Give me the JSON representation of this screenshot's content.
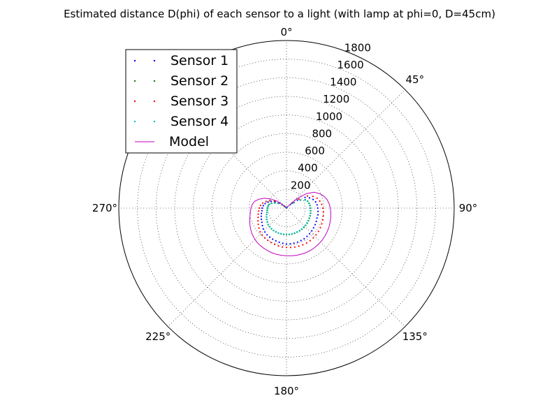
{
  "chart_data": {
    "type": "polar-scatter",
    "title": "Estimated distance D(phi) of each sensor to a light (with lamp at phi=0, D=45cm)",
    "theta_direction": "clockwise",
    "theta_zero": "top",
    "r_max": 1800,
    "r_ticks": [
      200,
      400,
      600,
      800,
      1000,
      1200,
      1400,
      1600,
      1800
    ],
    "r_tick_labels": [
      "200",
      "400",
      "600",
      "800",
      "1000",
      "1200",
      "1400",
      "1600",
      "1800"
    ],
    "theta_ticks": [
      0,
      45,
      90,
      135,
      180,
      225,
      270,
      315
    ],
    "theta_tick_labels": [
      "0°",
      "45°",
      "90°",
      "135°",
      "180°",
      "225°",
      "270°",
      ""
    ],
    "grid": true,
    "legend_position": "top-left",
    "series": [
      {
        "name": "Sensor 1",
        "style": "dots",
        "color": "#0000ff",
        "theta": [
          0,
          6,
          12,
          18,
          24,
          30,
          36,
          42,
          48,
          54,
          60,
          66,
          72,
          78,
          84,
          90,
          96,
          102,
          108,
          114,
          120,
          126,
          132,
          138,
          144,
          150,
          156,
          162,
          168,
          174,
          180,
          186,
          192,
          198,
          204,
          210,
          216,
          222,
          228,
          234,
          240,
          246,
          252,
          258,
          264,
          270,
          276,
          282,
          288,
          294,
          300,
          306,
          312,
          318,
          324,
          330,
          336,
          342,
          348,
          354
        ],
        "r": [
          10,
          10,
          10,
          10,
          10,
          10,
          10,
          10,
          80,
          145,
          230,
          270,
          300,
          320,
          330,
          335,
          340,
          345,
          345,
          350,
          355,
          360,
          365,
          370,
          375,
          380,
          382,
          385,
          385,
          385,
          385,
          380,
          375,
          370,
          365,
          360,
          355,
          345,
          335,
          320,
          305,
          295,
          285,
          275,
          265,
          260,
          250,
          235,
          210,
          180,
          140,
          90,
          30,
          10,
          10,
          10,
          10,
          10,
          10,
          10
        ]
      },
      {
        "name": "Sensor 2",
        "style": "dots",
        "color": "#008000",
        "theta": [
          0,
          6,
          12,
          18,
          24,
          30,
          36,
          42,
          48,
          54,
          60,
          66,
          72,
          78,
          84,
          90,
          96,
          102,
          108,
          114,
          120,
          126,
          132,
          138,
          144,
          150,
          156,
          162,
          168,
          174,
          180,
          186,
          192,
          198,
          204,
          210,
          216,
          222,
          228,
          234,
          240,
          246,
          252,
          258,
          264,
          270,
          276,
          282,
          288,
          294,
          300,
          306,
          312,
          318,
          324,
          330,
          336,
          342,
          348,
          354
        ],
        "r": [
          10,
          10,
          10,
          10,
          10,
          10,
          10,
          10,
          60,
          100,
          175,
          220,
          240,
          250,
          255,
          258,
          262,
          265,
          268,
          270,
          272,
          275,
          278,
          280,
          282,
          282,
          283,
          285,
          285,
          285,
          285,
          285,
          283,
          282,
          280,
          278,
          275,
          270,
          265,
          255,
          245,
          235,
          225,
          215,
          210,
          205,
          200,
          190,
          170,
          140,
          105,
          60,
          20,
          10,
          10,
          10,
          10,
          10,
          10,
          10
        ]
      },
      {
        "name": "Sensor 3",
        "style": "dots",
        "color": "#ff0000",
        "theta": [
          0,
          6,
          12,
          18,
          24,
          30,
          36,
          42,
          48,
          54,
          60,
          66,
          72,
          78,
          84,
          90,
          96,
          102,
          108,
          114,
          120,
          126,
          132,
          138,
          144,
          150,
          156,
          162,
          168,
          174,
          180,
          186,
          192,
          198,
          204,
          210,
          216,
          222,
          228,
          234,
          240,
          246,
          252,
          258,
          264,
          270,
          276,
          282,
          288,
          294,
          300,
          306,
          312,
          318,
          324,
          330,
          336,
          342,
          348,
          354
        ],
        "r": [
          10,
          10,
          10,
          10,
          10,
          10,
          10,
          10,
          90,
          165,
          260,
          310,
          345,
          365,
          380,
          390,
          398,
          405,
          410,
          415,
          420,
          425,
          428,
          430,
          432,
          433,
          432,
          430,
          428,
          425,
          422,
          420,
          415,
          410,
          405,
          400,
          395,
          390,
          380,
          365,
          350,
          335,
          320,
          310,
          300,
          290,
          280,
          260,
          230,
          195,
          150,
          100,
          35,
          10,
          10,
          10,
          10,
          10,
          10,
          10
        ]
      },
      {
        "name": "Sensor 4",
        "style": "dots",
        "color": "#00bfbf",
        "theta": [
          0,
          6,
          12,
          18,
          24,
          30,
          36,
          42,
          48,
          54,
          60,
          66,
          72,
          78,
          84,
          90,
          96,
          102,
          108,
          114,
          120,
          126,
          132,
          138,
          144,
          150,
          156,
          162,
          168,
          174,
          180,
          186,
          192,
          198,
          204,
          210,
          216,
          222,
          228,
          234,
          240,
          246,
          252,
          258,
          264,
          270,
          276,
          282,
          288,
          294,
          300,
          306,
          312,
          318,
          324,
          330,
          336,
          342,
          348,
          354
        ],
        "r": [
          10,
          10,
          10,
          10,
          10,
          10,
          10,
          10,
          55,
          95,
          170,
          215,
          235,
          245,
          250,
          253,
          257,
          260,
          263,
          265,
          267,
          270,
          273,
          275,
          277,
          278,
          279,
          280,
          281,
          281,
          281,
          281,
          280,
          279,
          277,
          275,
          272,
          268,
          262,
          252,
          242,
          232,
          222,
          212,
          205,
          200,
          195,
          185,
          165,
          135,
          100,
          55,
          18,
          10,
          10,
          10,
          10,
          10,
          10,
          10
        ]
      },
      {
        "name": "Model",
        "style": "line",
        "color": "#bf00bf",
        "theta": [
          0,
          6,
          12,
          18,
          24,
          30,
          36,
          42,
          48,
          54,
          60,
          66,
          72,
          78,
          84,
          90,
          96,
          102,
          108,
          114,
          120,
          126,
          132,
          138,
          144,
          150,
          156,
          162,
          168,
          174,
          180,
          186,
          192,
          198,
          204,
          210,
          216,
          222,
          228,
          234,
          240,
          246,
          252,
          258,
          264,
          270,
          276,
          282,
          288,
          294,
          300,
          306,
          312,
          318,
          324,
          330,
          336,
          342,
          348,
          354,
          360
        ],
        "r": [
          10,
          10,
          10,
          10,
          10,
          10,
          10,
          30,
          150,
          265,
          340,
          385,
          420,
          445,
          460,
          470,
          478,
          485,
          492,
          500,
          505,
          510,
          515,
          518,
          520,
          522,
          522,
          520,
          518,
          515,
          512,
          510,
          508,
          505,
          500,
          495,
          490,
          482,
          472,
          460,
          445,
          430,
          415,
          400,
          390,
          380,
          370,
          350,
          310,
          260,
          200,
          130,
          50,
          10,
          10,
          10,
          10,
          10,
          10,
          10,
          10
        ]
      }
    ]
  }
}
